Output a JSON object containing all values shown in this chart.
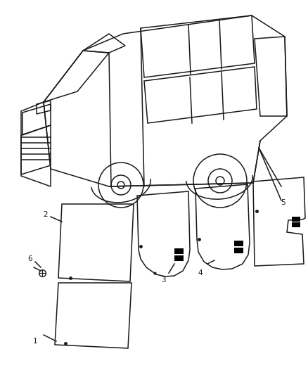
{
  "background_color": "#ffffff",
  "line_color": "#1a1a1a",
  "figsize": [
    4.38,
    5.33
  ],
  "dpi": 100,
  "label_fontsize": 7.5
}
